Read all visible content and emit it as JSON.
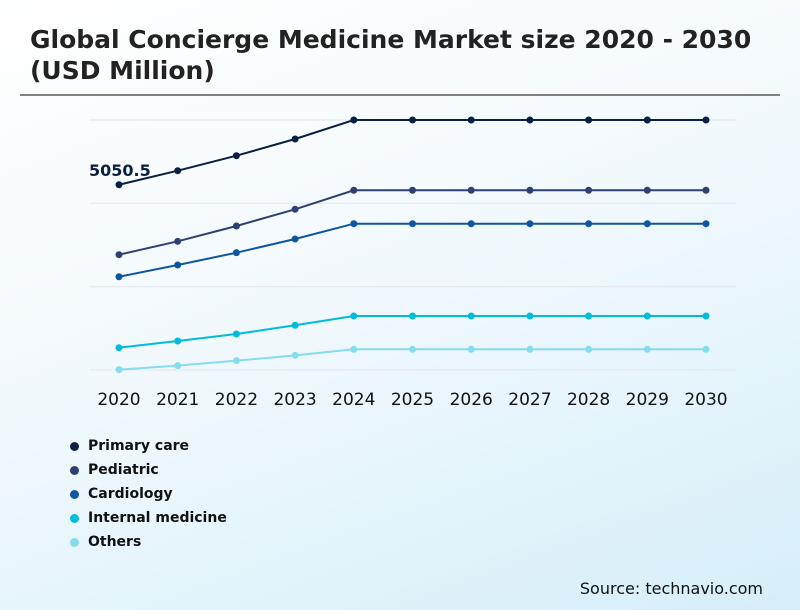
{
  "chart_data": {
    "type": "line",
    "title": "Global Concierge Medicine Market size 2020 - 2030 (USD Million)",
    "xlabel": "",
    "ylabel": "",
    "x": [
      "2020",
      "2021",
      "2022",
      "2023",
      "2024",
      "2025",
      "2026",
      "2027",
      "2028",
      "2029",
      "2030"
    ],
    "ylim": [
      0,
      6815
    ],
    "grid": true,
    "legend_position": "bottom-left",
    "annotation": "5050.5",
    "series": [
      {
        "name": "Primary care",
        "color": "#0b1f45",
        "values": [
          5050.5,
          5433,
          5842,
          6297,
          6815,
          6815,
          6815,
          6815,
          6815,
          6815,
          6815
        ]
      },
      {
        "name": "Pediatric",
        "color": "#2e3f72",
        "values": [
          3143,
          3508,
          3926,
          4381,
          4899,
          4899,
          4899,
          4899,
          4899,
          4899,
          4899
        ]
      },
      {
        "name": "Cardiology",
        "color": "#0d56a0",
        "values": [
          2543,
          2862,
          3198,
          3571,
          3988,
          3988,
          3988,
          3988,
          3988,
          3988,
          3988
        ]
      },
      {
        "name": "Internal medicine",
        "color": "#00bcd9",
        "values": [
          608,
          791,
          981,
          1219,
          1472,
          1472,
          1472,
          1472,
          1472,
          1472,
          1472
        ]
      },
      {
        "name": "Others",
        "color": "#86dcef",
        "values": [
          10,
          120,
          254,
          400,
          564,
          564,
          564,
          564,
          564,
          564,
          564
        ]
      }
    ]
  },
  "source": "Source: technavio.com"
}
